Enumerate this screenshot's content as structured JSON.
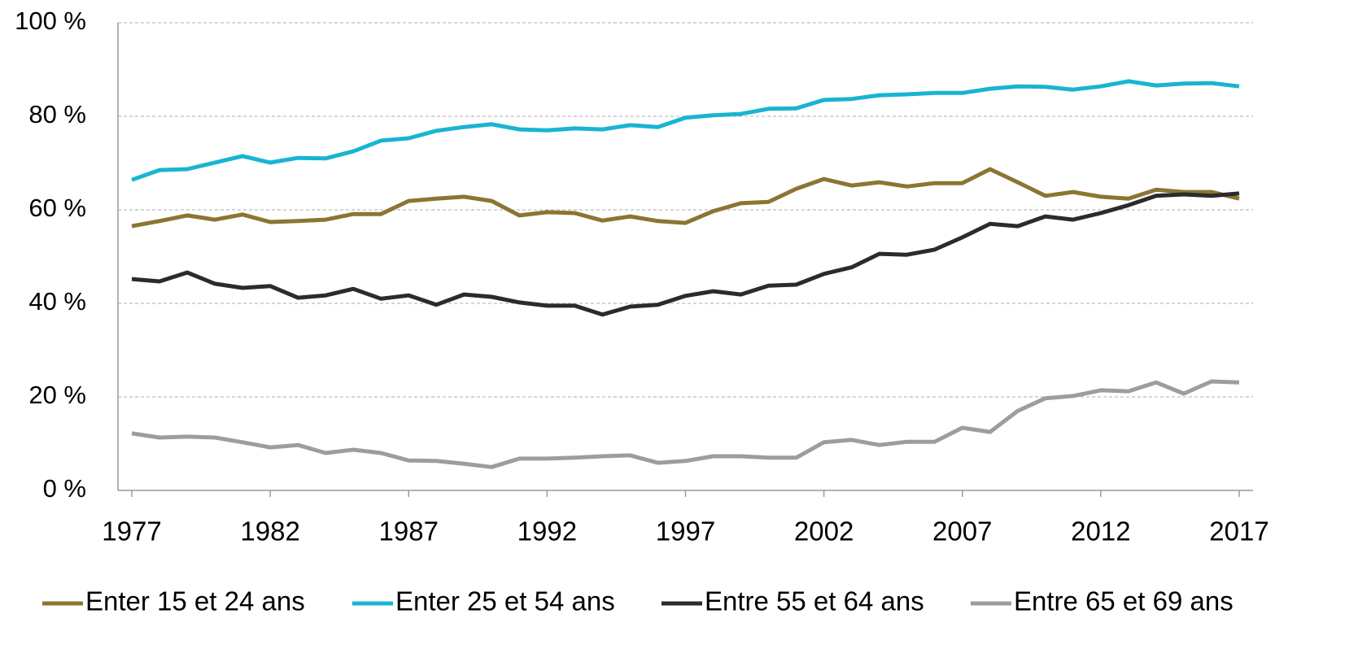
{
  "chart_data": {
    "type": "line",
    "x": [
      1977,
      1978,
      1979,
      1980,
      1981,
      1982,
      1983,
      1984,
      1985,
      1986,
      1987,
      1988,
      1989,
      1990,
      1991,
      1992,
      1993,
      1994,
      1995,
      1996,
      1997,
      1998,
      1999,
      2000,
      2001,
      2002,
      2003,
      2004,
      2005,
      2006,
      2007,
      2008,
      2009,
      2010,
      2011,
      2012,
      2013,
      2014,
      2015,
      2016,
      2017
    ],
    "xlim": [
      1976.5,
      2017.5
    ],
    "xticks": [
      1977,
      1982,
      1987,
      1992,
      1997,
      2002,
      2007,
      2012,
      2017
    ],
    "ylim": [
      0,
      100
    ],
    "yticks": [
      {
        "value": 0,
        "label": "0 %"
      },
      {
        "value": 20,
        "label": "20 %"
      },
      {
        "value": 40,
        "label": "40 %"
      },
      {
        "value": 60,
        "label": "60 %"
      },
      {
        "value": 80,
        "label": "80 %"
      },
      {
        "value": 100,
        "label": "100 %"
      }
    ],
    "grid": true,
    "legend": "bottom",
    "series": [
      {
        "name": "Enter 15 et 24 ans",
        "color": "#8b7532",
        "values": [
          56.5,
          57.6,
          58.8,
          57.9,
          59.0,
          57.4,
          57.6,
          57.9,
          59.1,
          59.1,
          61.9,
          62.4,
          62.8,
          61.9,
          58.8,
          59.5,
          59.3,
          57.7,
          58.6,
          57.6,
          57.2,
          59.7,
          61.4,
          61.7,
          64.5,
          66.6,
          65.2,
          65.9,
          65.0,
          65.7,
          65.7,
          68.7,
          65.9,
          63.0,
          63.8,
          62.8,
          62.4,
          64.3,
          63.8,
          63.8,
          62.4
        ]
      },
      {
        "name": "Enter 25 et 54 ans",
        "color": "#19b4d2",
        "values": [
          66.4,
          68.5,
          68.7,
          70.1,
          71.5,
          70.1,
          71.1,
          71.0,
          72.5,
          74.8,
          75.3,
          76.9,
          77.7,
          78.3,
          77.2,
          77.0,
          77.4,
          77.2,
          78.1,
          77.7,
          79.7,
          80.2,
          80.5,
          81.6,
          81.7,
          83.5,
          83.7,
          84.5,
          84.7,
          85.0,
          85.0,
          85.9,
          86.4,
          86.3,
          85.7,
          86.4,
          87.5,
          86.6,
          87.0,
          87.1,
          86.4
        ]
      },
      {
        "name": "Entre 55 et 64 ans",
        "color": "#2b2b2d",
        "values": [
          45.2,
          44.7,
          46.6,
          44.2,
          43.3,
          43.7,
          41.2,
          41.7,
          43.1,
          41.0,
          41.7,
          39.7,
          41.9,
          41.4,
          40.2,
          39.5,
          39.5,
          37.6,
          39.3,
          39.7,
          41.6,
          42.6,
          41.9,
          43.8,
          44.0,
          46.3,
          47.7,
          50.6,
          50.4,
          51.5,
          54.1,
          57.0,
          56.5,
          58.6,
          57.9,
          59.3,
          61.0,
          63.0,
          63.3,
          63.0,
          63.5
        ]
      },
      {
        "name": "Entre 65 et 69 ans",
        "color": "#a09c9c",
        "values": [
          12.2,
          11.3,
          11.5,
          11.3,
          10.3,
          9.2,
          9.7,
          8.0,
          8.7,
          8.0,
          6.4,
          6.3,
          5.7,
          5.0,
          6.8,
          6.8,
          7.0,
          7.3,
          7.5,
          5.9,
          6.3,
          7.3,
          7.3,
          7.0,
          7.0,
          10.3,
          10.8,
          9.7,
          10.4,
          10.4,
          13.4,
          12.5,
          17.0,
          19.7,
          20.2,
          21.4,
          21.2,
          23.1,
          20.7,
          23.3,
          23.1
        ]
      }
    ]
  }
}
